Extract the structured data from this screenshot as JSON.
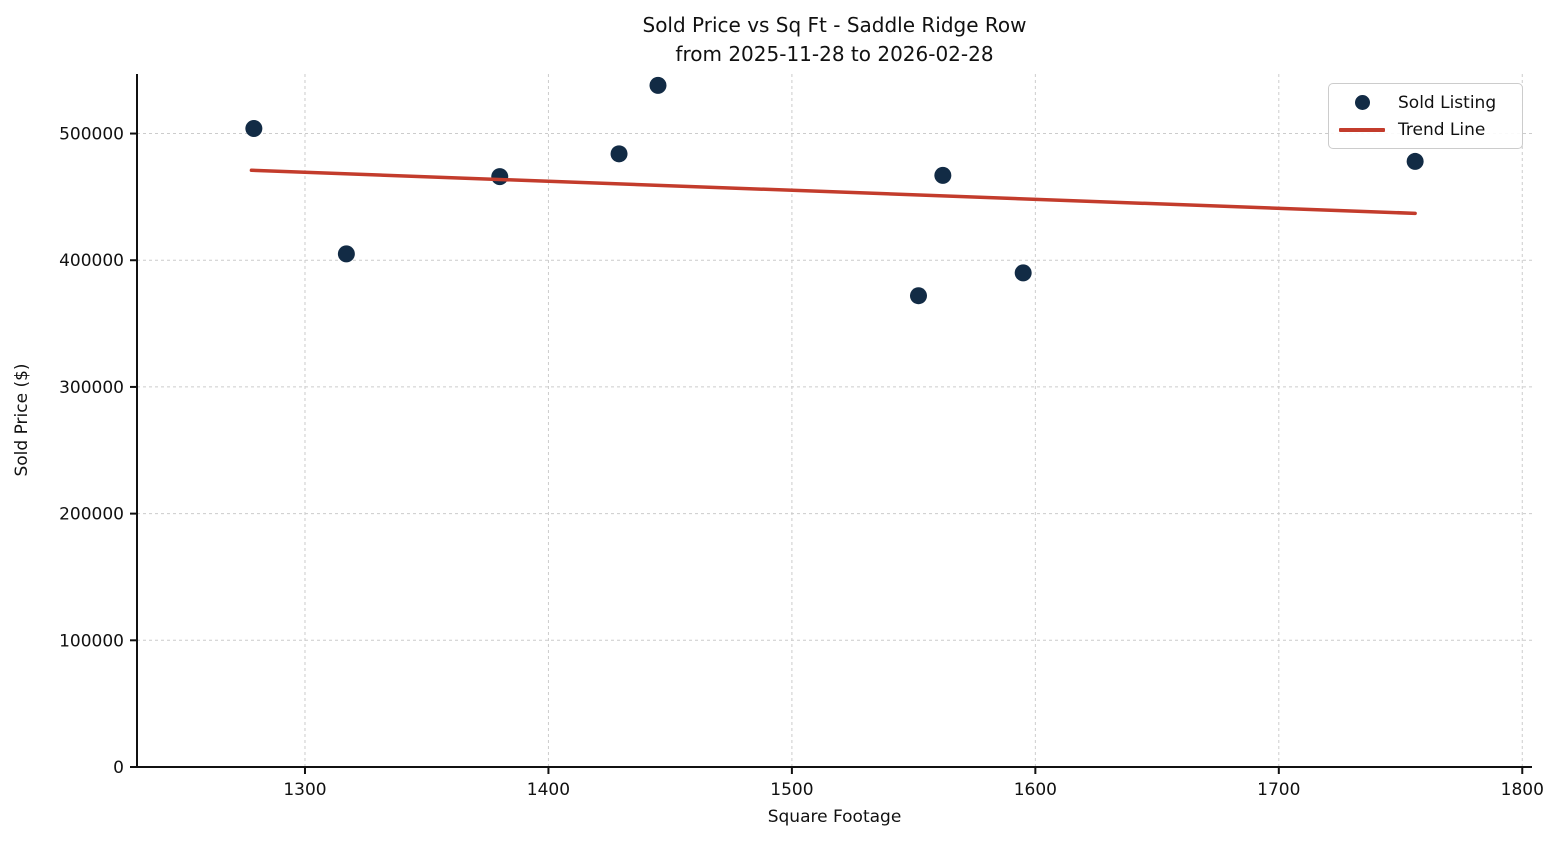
{
  "chart_data": {
    "type": "scatter",
    "title": "Sold Price vs Sq Ft - Saddle Ridge Row",
    "subtitle": "from 2025-11-28 to 2026-02-28",
    "xlabel": "Square Footage",
    "ylabel": "Sold Price ($)",
    "xlim": [
      1231,
      1804
    ],
    "ylim": [
      0,
      547000
    ],
    "x_ticks": [
      1300,
      1400,
      1500,
      1600,
      1700,
      1800
    ],
    "y_ticks": [
      0,
      100000,
      200000,
      300000,
      400000,
      500000
    ],
    "grid": true,
    "legend_position": "upper right",
    "style": {
      "scatter_color": "#122b45",
      "trend_color": "#c33c2c",
      "grid_color": "#cccccc",
      "axis_color": "#111111",
      "background_color": "#ffffff"
    },
    "series": [
      {
        "name": "Sold Listing",
        "type": "scatter",
        "color": "#122b45",
        "points": [
          {
            "sqft": 1279,
            "price": 504000
          },
          {
            "sqft": 1317,
            "price": 405000
          },
          {
            "sqft": 1380,
            "price": 466000
          },
          {
            "sqft": 1429,
            "price": 484000
          },
          {
            "sqft": 1445,
            "price": 538000
          },
          {
            "sqft": 1552,
            "price": 372000
          },
          {
            "sqft": 1562,
            "price": 467000
          },
          {
            "sqft": 1595,
            "price": 390000
          },
          {
            "sqft": 1756,
            "price": 478000
          }
        ]
      },
      {
        "name": "Trend Line",
        "type": "line",
        "color": "#c33c2c",
        "points": [
          {
            "sqft": 1278,
            "price": 471000
          },
          {
            "sqft": 1756,
            "price": 437000
          }
        ]
      }
    ]
  }
}
